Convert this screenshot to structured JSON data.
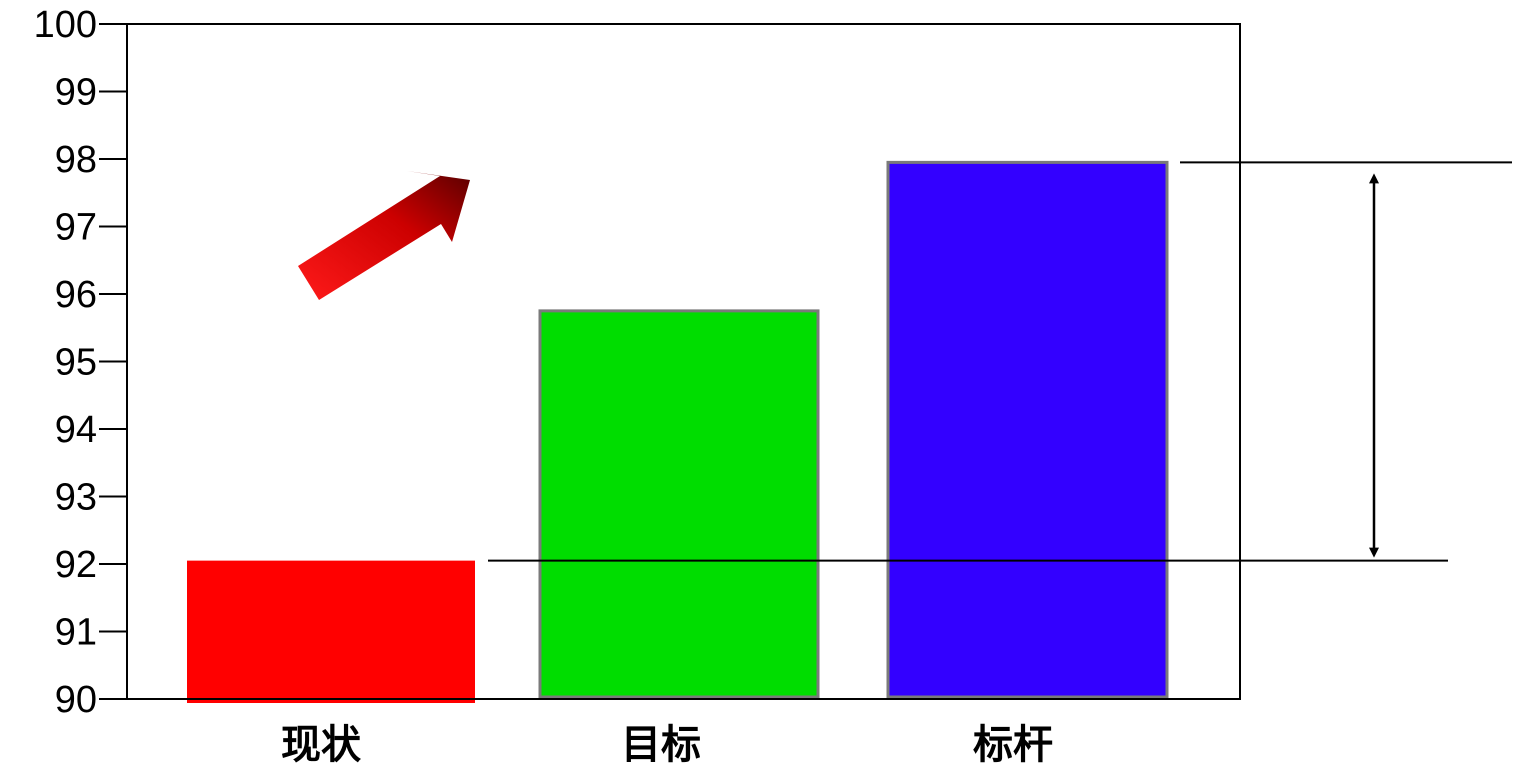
{
  "chart_data": {
    "type": "bar",
    "categories": [
      "现状",
      "目标",
      "标杆"
    ],
    "values": [
      92.05,
      95.75,
      97.95
    ],
    "colors": [
      "#ff0000",
      "#00dd00",
      "#3300ff"
    ],
    "ylim": [
      90,
      100
    ],
    "yticks": [
      "90",
      "91",
      "92",
      "93",
      "94",
      "95",
      "96",
      "97",
      "98",
      "99",
      "100"
    ],
    "title": "",
    "xlabel": "",
    "ylabel": "",
    "grid": false,
    "legend": "none",
    "annotations": {
      "trend_arrow": {
        "color": "#cc0000",
        "direction": "up-right"
      },
      "gap_reference_lines": [
        92.05,
        97.95
      ],
      "gap_double_arrow": {
        "from": 92.05,
        "to": 97.95
      }
    }
  }
}
